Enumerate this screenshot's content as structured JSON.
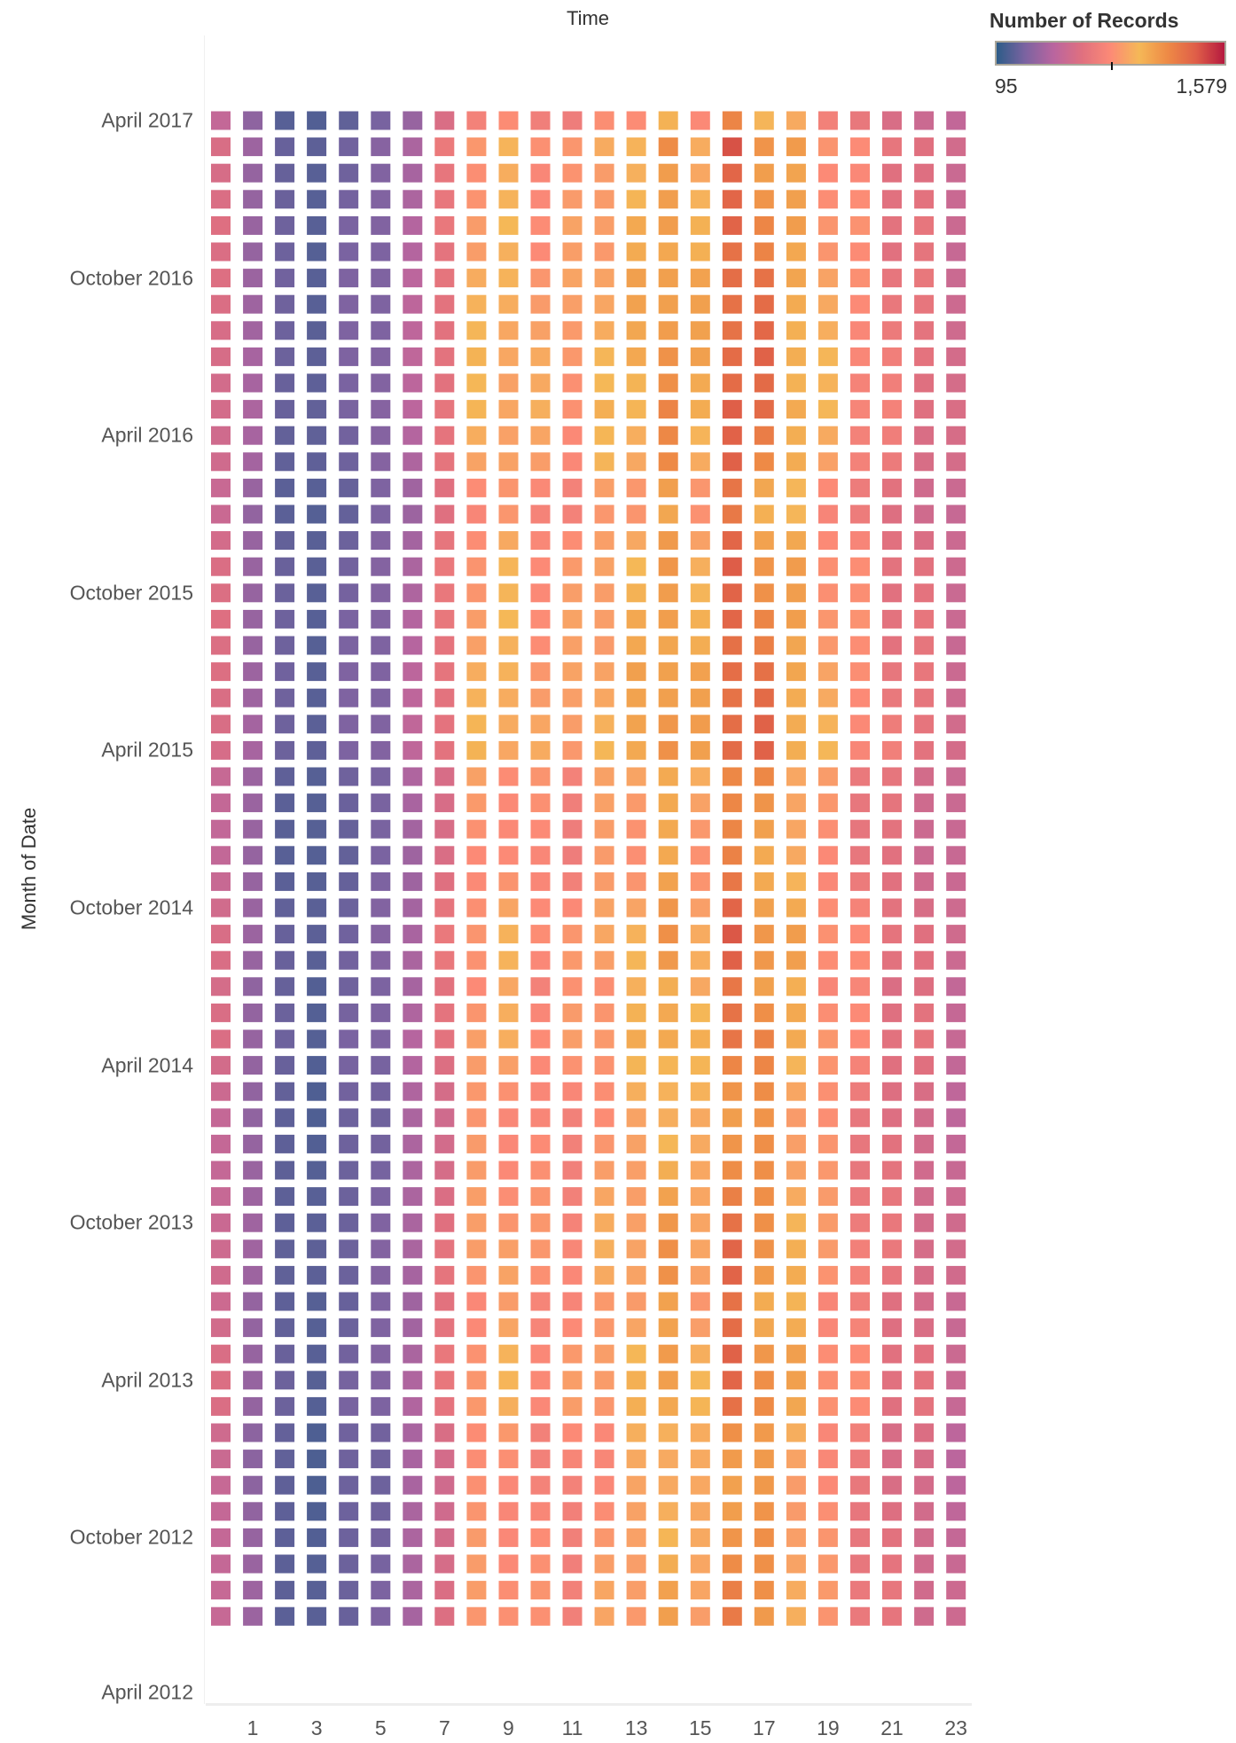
{
  "chart_data": {
    "type": "heatmap",
    "title": "Time",
    "xlabel": "Time",
    "ylabel": "Month of Date",
    "x_categories": [
      0,
      1,
      2,
      3,
      4,
      5,
      6,
      7,
      8,
      9,
      10,
      11,
      12,
      13,
      14,
      15,
      16,
      17,
      18,
      19,
      20,
      21,
      22,
      23
    ],
    "x_tick_labels": [
      "1",
      "3",
      "5",
      "7",
      "9",
      "11",
      "13",
      "15",
      "17",
      "19",
      "21",
      "23"
    ],
    "y_tick_labels": [
      "April 2017",
      "October 2016",
      "April 2016",
      "October 2015",
      "April 2015",
      "October 2014",
      "April 2014",
      "October 2013",
      "April 2013",
      "October 2012",
      "April 2012"
    ],
    "y_start_month": "April 2017",
    "y_end_month": "July 2012",
    "row_count": 58,
    "hourly_profile": [
      560,
      360,
      220,
      190,
      250,
      280,
      420,
      640,
      880,
      900,
      830,
      820,
      900,
      960,
      1080,
      960,
      1260,
      1160,
      1010,
      860,
      760,
      660,
      610,
      530
    ],
    "month_factors": [
      0.92,
      1.07,
      1.03,
      1.05,
      1.08,
      1.06,
      1.1,
      1.1,
      1.1,
      1.12,
      1.1,
      1.12,
      1.08,
      1.06,
      0.98,
      0.96,
      1.02,
      1.06,
      1.06,
      1.08,
      1.07,
      1.1,
      1.1,
      1.12,
      1.12,
      1.0,
      0.98,
      0.96,
      0.95,
      0.97,
      1.02,
      1.06,
      1.05,
      1.0,
      1.04,
      1.06,
      1.02,
      0.98,
      0.95,
      0.97,
      0.98,
      1.0,
      1.02,
      1.04,
      1.03,
      0.98,
      1.0,
      1.05,
      1.06,
      1.05,
      0.97,
      0.95,
      0.94,
      0.95,
      0.97,
      0.98,
      1.0,
      0.99
    ],
    "legend": {
      "title": "Number of Records",
      "min_label": "95",
      "max_label": "1,579",
      "min": 95,
      "max": 1579,
      "placement": "top-right"
    },
    "color_stops": [
      "#2d5c88",
      "#7b63a1",
      "#b9659f",
      "#e0707f",
      "#fc8a76",
      "#f5b857",
      "#ee8a46",
      "#df5e48",
      "#b5193f"
    ]
  }
}
